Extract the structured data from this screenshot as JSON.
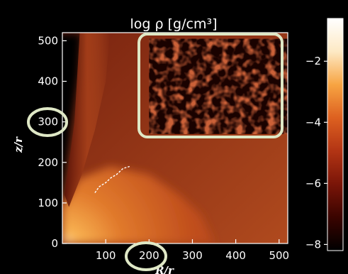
{
  "figure": {
    "title": "log ρ [g/cm³]",
    "xlabel": "R/r",
    "ylabel": "z/r"
  },
  "chart_data": {
    "type": "heatmap",
    "title": "log ρ [g/cm³]",
    "xlabel": "R/r",
    "ylabel": "z/r",
    "xlim": [
      0,
      520
    ],
    "ylim": [
      0,
      520
    ],
    "x_ticks": [
      {
        "value": 100,
        "label": "100"
      },
      {
        "value": 200,
        "label": "200"
      },
      {
        "value": 300,
        "label": "300"
      },
      {
        "value": 400,
        "label": "400"
      },
      {
        "value": 500,
        "label": "500"
      }
    ],
    "y_ticks": [
      {
        "value": 0,
        "label": "0"
      },
      {
        "value": 100,
        "label": "100"
      },
      {
        "value": 200,
        "label": "200"
      },
      {
        "value": 300,
        "label": "300"
      },
      {
        "value": 400,
        "label": "400"
      },
      {
        "value": 500,
        "label": "500"
      }
    ],
    "colorbar": {
      "min": -8.2,
      "max": -0.6,
      "ticks": [
        {
          "value": -2,
          "label": "−2"
        },
        {
          "value": -4,
          "label": "−4"
        },
        {
          "value": -6,
          "label": "−6"
        },
        {
          "value": -8,
          "label": "−8"
        }
      ],
      "stops": [
        "#000000",
        "#3a0400",
        "#7a1508",
        "#b23414",
        "#dd6020",
        "#f7a442",
        "#fde9c4",
        "#ffffff"
      ]
    },
    "density_regions": [
      {
        "region": "evacuated polar funnel",
        "log_rho": -8
      },
      {
        "region": "outflow sheet near axis",
        "log_rho": -4.5
      },
      {
        "region": "turbulent outer flow",
        "log_rho": -5.5
      },
      {
        "region": "dense inner disk",
        "log_rho": -2.5
      },
      {
        "region": "innermost core",
        "log_rho": -1
      }
    ]
  },
  "highlights": {
    "ring_color": "#dfe8c6",
    "items": [
      "y-tick 300",
      "x-tick 200",
      "zoomed turbulent region"
    ]
  }
}
